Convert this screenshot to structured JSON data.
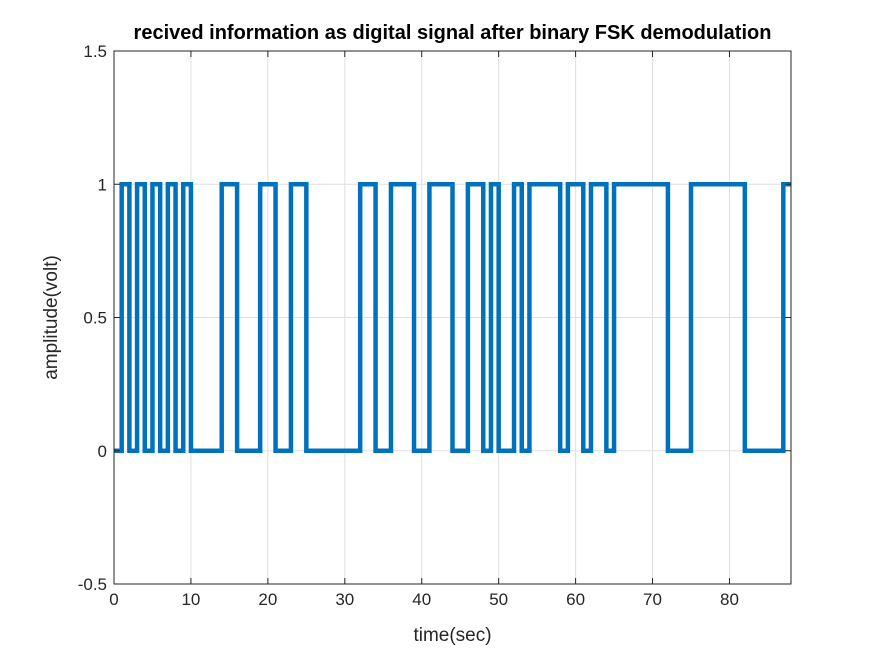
{
  "chart_data": {
    "type": "line",
    "title": "recived information as digital signal after binary FSK demodulation",
    "xlabel": "time(sec)",
    "ylabel": "amplitude(volt)",
    "xlim": [
      0,
      88
    ],
    "ylim": [
      -0.5,
      1.5
    ],
    "xticks": [
      0,
      10,
      20,
      30,
      40,
      50,
      60,
      70,
      80
    ],
    "xtick_labels": [
      "0",
      "10",
      "20",
      "30",
      "40",
      "50",
      "60",
      "70",
      "80"
    ],
    "yticks": [
      -0.5,
      0,
      0.5,
      1,
      1.5
    ],
    "ytick_labels": [
      "-0.5",
      "0",
      "0.5",
      "1",
      "1.5"
    ],
    "grid": true,
    "line_color": "#0072BD",
    "series": [
      {
        "values": [
          0,
          1,
          0,
          1,
          0,
          1,
          0,
          1,
          0,
          1,
          0,
          0,
          0,
          0,
          1,
          1,
          0,
          0,
          0,
          1,
          1,
          0,
          0,
          1,
          1,
          0,
          0,
          0,
          0,
          0,
          0,
          0,
          1,
          1,
          0,
          0,
          1,
          1,
          1,
          0,
          0,
          1,
          1,
          1,
          0,
          0,
          1,
          1,
          0,
          1,
          0,
          0,
          1,
          0,
          1,
          1,
          1,
          1,
          0,
          1,
          1,
          0,
          1,
          1,
          0,
          1,
          1,
          1,
          1,
          1,
          1,
          1,
          0,
          0,
          0,
          1,
          1,
          1,
          1,
          1,
          1,
          1,
          0,
          0,
          0,
          0,
          0,
          1,
          1
        ],
        "x": [
          0,
          1,
          2,
          3,
          4,
          5,
          6,
          7,
          8,
          9,
          10,
          11,
          12,
          13,
          14,
          15,
          16,
          17,
          18,
          19,
          20,
          21,
          22,
          23,
          24,
          25,
          26,
          27,
          28,
          29,
          30,
          31,
          32,
          33,
          34,
          35,
          36,
          37,
          38,
          39,
          40,
          41,
          42,
          43,
          44,
          45,
          46,
          47,
          48,
          49,
          50,
          51,
          52,
          53,
          54,
          55,
          56,
          57,
          58,
          59,
          60,
          61,
          62,
          63,
          64,
          65,
          66,
          67,
          68,
          69,
          70,
          71,
          72,
          73,
          74,
          75,
          76,
          77,
          78,
          79,
          80,
          81,
          82,
          83,
          84,
          85,
          86,
          87,
          88
        ]
      }
    ]
  }
}
